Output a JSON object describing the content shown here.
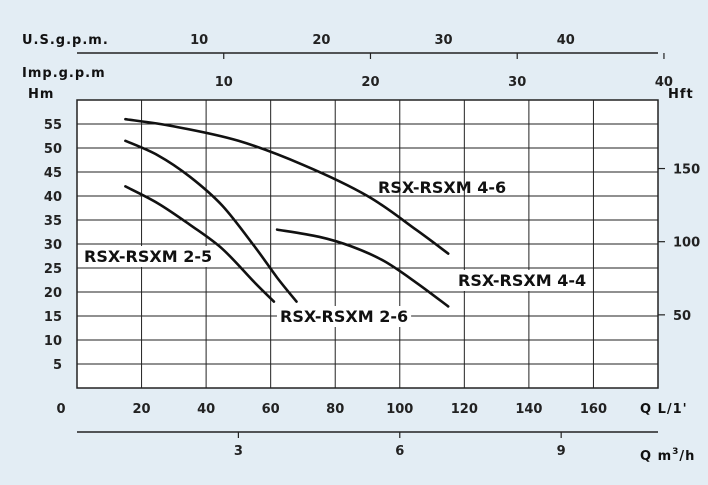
{
  "chart_data": {
    "type": "line",
    "title": "",
    "background": "#e3edf4",
    "plot_background": "#ffffff",
    "axes": {
      "x_primary": {
        "label": "Q L/1'",
        "range": [
          0,
          180
        ],
        "ticks": [
          0,
          20,
          40,
          60,
          80,
          100,
          120,
          140,
          160
        ]
      },
      "x_m3h": {
        "label_main": "Q m",
        "label_sup": "3",
        "label_tail": "/h",
        "ticks": [
          3,
          6,
          9
        ]
      },
      "x_usgpm": {
        "label": "U.S.g.p.m.",
        "ticks": [
          10,
          20,
          30,
          40
        ]
      },
      "x_impgpm": {
        "label": "Imp.g.p.m",
        "ticks": [
          10,
          20,
          30,
          40
        ]
      },
      "y_left": {
        "label": "Hm",
        "range": [
          0,
          60
        ],
        "ticks": [
          5,
          10,
          15,
          20,
          25,
          30,
          35,
          40,
          45,
          50,
          55
        ]
      },
      "y_right": {
        "label": "Hft",
        "ticks": [
          50,
          100,
          150
        ]
      }
    },
    "grid": true,
    "series": [
      {
        "name": "RSX-RSXM 4-6",
        "x": [
          15,
          30,
          50,
          70,
          90,
          105,
          115
        ],
        "y": [
          56,
          54.5,
          51.5,
          46.5,
          40,
          33,
          28
        ]
      },
      {
        "name": "RSX-RSXM 2-6",
        "x": [
          15,
          25,
          35,
          45,
          55,
          62,
          68
        ],
        "y": [
          51.5,
          48.5,
          44,
          38,
          29.5,
          23,
          18
        ]
      },
      {
        "name": "RSX-RSXM 2-5",
        "x": [
          15,
          25,
          35,
          45,
          55,
          61
        ],
        "y": [
          42,
          38.5,
          34,
          29,
          22,
          18
        ]
      },
      {
        "name": "RSX-RSXM 4-4",
        "x": [
          62,
          75,
          85,
          95,
          105,
          115
        ],
        "y": [
          33,
          31.5,
          29.5,
          26.5,
          22,
          17
        ]
      }
    ]
  }
}
